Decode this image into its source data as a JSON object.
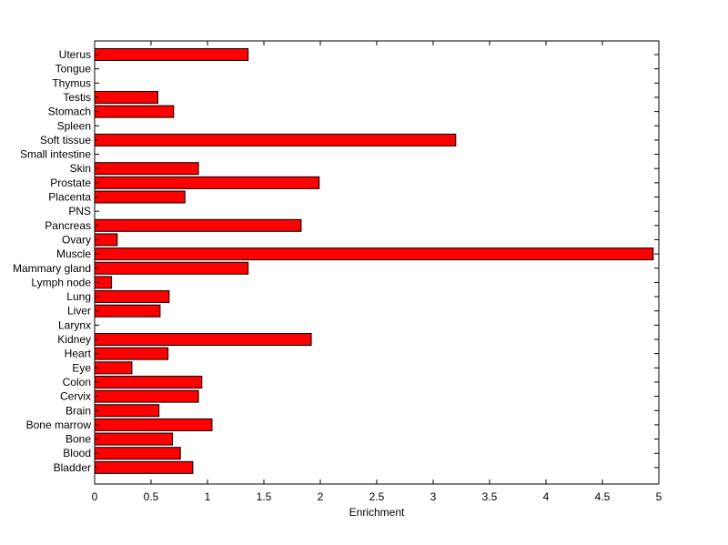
{
  "chart_data": {
    "type": "bar",
    "orientation": "horizontal",
    "title": "",
    "xlabel": "Enrichment",
    "ylabel": "",
    "xlim": [
      0,
      5
    ],
    "xticks": [
      0,
      0.5,
      1,
      1.5,
      2,
      2.5,
      3,
      3.5,
      4,
      4.5,
      5
    ],
    "xtick_labels": [
      "0",
      "0.5",
      "1",
      "1.5",
      "2",
      "2.5",
      "3",
      "3.5",
      "4",
      "4.5",
      "5"
    ],
    "grid": false,
    "bar_color": "#ff0000",
    "categories": [
      "Uterus",
      "Tongue",
      "Thymus",
      "Testis",
      "Stomach",
      "Spleen",
      "Soft tissue",
      "Small intestine",
      "Skin",
      "Prostate",
      "Placenta",
      "PNS",
      "Pancreas",
      "Ovary",
      "Muscle",
      "Mammary gland",
      "Lymph node",
      "Lung",
      "Liver",
      "Larynx",
      "Kidney",
      "Heart",
      "Eye",
      "Colon",
      "Cervix",
      "Brain",
      "Bone marrow",
      "Bone",
      "Blood",
      "Bladder"
    ],
    "values": [
      1.36,
      0,
      0,
      0.56,
      0.7,
      0,
      3.2,
      0,
      0.92,
      1.99,
      0.8,
      0,
      1.83,
      0.2,
      4.95,
      1.36,
      0.15,
      0.66,
      0.58,
      0,
      1.92,
      0.65,
      0.33,
      0.95,
      0.92,
      0.57,
      1.04,
      0.69,
      0.76,
      0.87
    ]
  }
}
